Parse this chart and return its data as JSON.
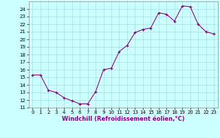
{
  "hours": [
    0,
    1,
    2,
    3,
    4,
    5,
    6,
    7,
    8,
    9,
    10,
    11,
    12,
    13,
    14,
    15,
    16,
    17,
    18,
    19,
    20,
    21,
    22,
    23
  ],
  "values": [
    15.3,
    15.3,
    13.3,
    13.0,
    12.3,
    11.9,
    11.5,
    11.5,
    13.1,
    16.0,
    16.2,
    18.4,
    19.2,
    20.9,
    21.3,
    21.5,
    23.5,
    23.3,
    22.4,
    24.4,
    24.3,
    22.0,
    21.0,
    20.7
  ],
  "xlim": [
    -0.5,
    23.5
  ],
  "ylim": [
    11,
    25
  ],
  "yticks": [
    11,
    12,
    13,
    14,
    15,
    16,
    17,
    18,
    19,
    20,
    21,
    22,
    23,
    24
  ],
  "xticks": [
    0,
    1,
    2,
    3,
    4,
    5,
    6,
    7,
    8,
    9,
    10,
    11,
    12,
    13,
    14,
    15,
    16,
    17,
    18,
    19,
    20,
    21,
    22,
    23
  ],
  "xlabel": "Windchill (Refroidissement éolien,°C)",
  "line_color": "#8B008B",
  "marker": "+",
  "bg_color": "#CCFFFF",
  "grid_color": "#AADDDD"
}
